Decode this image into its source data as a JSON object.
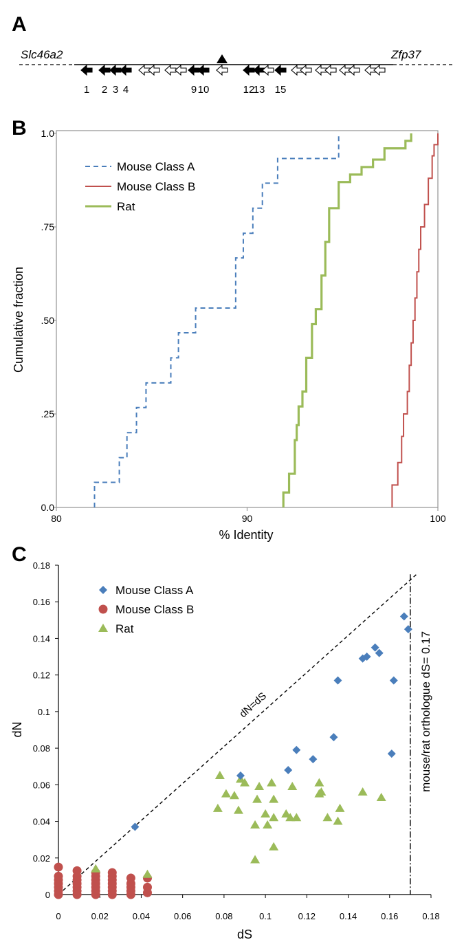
{
  "panel_a": {
    "label": "A",
    "left_gene": "Slc46a2",
    "right_gene": "Zfp37",
    "arrows": [
      {
        "filled": true,
        "label": "1"
      },
      {
        "filled": true,
        "label": "2"
      },
      {
        "filled": true,
        "label": "3"
      },
      {
        "filled": true,
        "label": "4"
      },
      {
        "filled": false,
        "label": ""
      },
      {
        "filled": false,
        "label": ""
      },
      {
        "filled": false,
        "label": ""
      },
      {
        "filled": false,
        "label": ""
      },
      {
        "filled": true,
        "label": "9"
      },
      {
        "filled": true,
        "label": "10"
      },
      {
        "filled": false,
        "label": ""
      },
      {
        "filled": true,
        "label": "12"
      },
      {
        "filled": true,
        "label": "13"
      },
      {
        "filled": false,
        "label": ""
      },
      {
        "filled": true,
        "label": "15"
      },
      {
        "filled": false,
        "label": ""
      },
      {
        "filled": false,
        "label": ""
      },
      {
        "filled": false,
        "label": ""
      },
      {
        "filled": false,
        "label": ""
      },
      {
        "filled": false,
        "label": ""
      },
      {
        "filled": false,
        "label": ""
      },
      {
        "filled": false,
        "label": ""
      },
      {
        "filled": false,
        "label": ""
      }
    ]
  },
  "panel_b": {
    "label": "B"
  },
  "panel_c": {
    "label": "C"
  },
  "colors": {
    "mouse_a": "#4a7ebb",
    "mouse_b": "#c0504d",
    "rat": "#9bbb59"
  },
  "chart_data": [
    {
      "type": "line",
      "subtype": "step-cumulative",
      "xlabel": "% Identity",
      "ylabel": "Cumulative fraction",
      "xlim": [
        80,
        100
      ],
      "ylim": [
        0,
        1
      ],
      "x_ticks": [
        80,
        90,
        100
      ],
      "y_ticks": [
        0,
        0.25,
        0.5,
        0.75,
        1.0
      ],
      "y_tick_labels": [
        "0.0",
        ".25",
        ".50",
        ".75",
        "1.0"
      ],
      "legend_position": "top-left",
      "series": [
        {
          "name": "Mouse Class A",
          "style": "dashed",
          "x": [
            82.0,
            83.3,
            83.7,
            84.2,
            84.7,
            86.0,
            86.4,
            87.3,
            89.4,
            89.8,
            90.3,
            90.8,
            91.6,
            92.2,
            94.8,
            94.8
          ],
          "y": [
            0.067,
            0.133,
            0.2,
            0.267,
            0.333,
            0.4,
            0.467,
            0.533,
            0.667,
            0.733,
            0.8,
            0.867,
            0.933,
            0.933,
            1.0,
            1.0
          ]
        },
        {
          "name": "Mouse Class B",
          "style": "solid",
          "x": [
            97.6,
            97.9,
            98.1,
            98.2,
            98.4,
            98.5,
            98.6,
            98.7,
            98.8,
            98.9,
            99.0,
            99.1,
            99.3,
            99.5,
            99.7,
            99.8,
            100.0
          ],
          "y": [
            0.06,
            0.12,
            0.19,
            0.25,
            0.31,
            0.38,
            0.44,
            0.5,
            0.56,
            0.63,
            0.69,
            0.75,
            0.81,
            0.88,
            0.94,
            0.97,
            1.0
          ]
        },
        {
          "name": "Rat",
          "style": "solid",
          "x": [
            91.9,
            92.2,
            92.5,
            92.6,
            92.7,
            92.9,
            93.1,
            93.4,
            93.6,
            93.9,
            94.1,
            94.3,
            94.8,
            95.4,
            96.0,
            96.6,
            97.2,
            98.3,
            98.6
          ],
          "y": [
            0.04,
            0.09,
            0.18,
            0.22,
            0.27,
            0.31,
            0.4,
            0.49,
            0.53,
            0.62,
            0.71,
            0.8,
            0.87,
            0.89,
            0.91,
            0.93,
            0.96,
            0.98,
            1.0
          ]
        }
      ]
    },
    {
      "type": "scatter",
      "xlabel": "dS",
      "ylabel": "dN",
      "xlim": [
        0,
        0.18
      ],
      "ylim": [
        0,
        0.18
      ],
      "x_ticks": [
        0,
        0.02,
        0.04,
        0.06,
        0.08,
        0.1,
        0.12,
        0.14,
        0.16,
        0.18
      ],
      "x_tick_labels": [
        "0",
        "0.02",
        "0.04",
        "0.06",
        "0.08",
        "0.1",
        "0.12",
        "0.14",
        "0.16",
        "0.18"
      ],
      "y_ticks": [
        0,
        0.02,
        0.04,
        0.06,
        0.08,
        0.1,
        0.12,
        0.14,
        0.16,
        0.18
      ],
      "y_tick_labels": [
        "0",
        "0.02",
        "0.04",
        "0.06",
        "0.08",
        "0.1",
        "0.12",
        "0.14",
        "0.16",
        "0.18"
      ],
      "legend_position": "top-left",
      "annotations": [
        {
          "text": "dN=dS",
          "kind": "diagonal-line",
          "from": [
            0,
            0
          ],
          "to": [
            0.173,
            0.175
          ]
        },
        {
          "text": "mouse/rat orthologue dS= 0.17",
          "kind": "vertical-line",
          "x": 0.17
        }
      ],
      "series": [
        {
          "name": "Mouse Class A",
          "marker": "diamond",
          "points": [
            [
              0.037,
              0.037
            ],
            [
              0.088,
              0.065
            ],
            [
              0.111,
              0.068
            ],
            [
              0.115,
              0.079
            ],
            [
              0.123,
              0.074
            ],
            [
              0.133,
              0.086
            ],
            [
              0.135,
              0.117
            ],
            [
              0.147,
              0.129
            ],
            [
              0.149,
              0.13
            ],
            [
              0.153,
              0.135
            ],
            [
              0.155,
              0.132
            ],
            [
              0.161,
              0.077
            ],
            [
              0.162,
              0.117
            ],
            [
              0.167,
              0.152
            ],
            [
              0.169,
              0.145
            ]
          ]
        },
        {
          "name": "Mouse Class B",
          "marker": "circle",
          "points": [
            [
              0,
              0.0
            ],
            [
              0,
              0.002
            ],
            [
              0,
              0.004
            ],
            [
              0,
              0.006
            ],
            [
              0,
              0.008
            ],
            [
              0,
              0.01
            ],
            [
              0,
              0.015
            ],
            [
              0.009,
              0.0
            ],
            [
              0.009,
              0.002
            ],
            [
              0.009,
              0.004
            ],
            [
              0.009,
              0.006
            ],
            [
              0.009,
              0.008
            ],
            [
              0.009,
              0.01
            ],
            [
              0.009,
              0.013
            ],
            [
              0.018,
              0.0
            ],
            [
              0.018,
              0.002
            ],
            [
              0.018,
              0.004
            ],
            [
              0.018,
              0.006
            ],
            [
              0.018,
              0.008
            ],
            [
              0.018,
              0.01
            ],
            [
              0.018,
              0.012
            ],
            [
              0.026,
              0.0
            ],
            [
              0.026,
              0.002
            ],
            [
              0.026,
              0.004
            ],
            [
              0.026,
              0.006
            ],
            [
              0.026,
              0.008
            ],
            [
              0.026,
              0.01
            ],
            [
              0.026,
              0.012
            ],
            [
              0.035,
              0.0
            ],
            [
              0.035,
              0.002
            ],
            [
              0.035,
              0.004
            ],
            [
              0.035,
              0.006
            ],
            [
              0.035,
              0.009
            ],
            [
              0.043,
              0.001
            ],
            [
              0.043,
              0.004
            ],
            [
              0.043,
              0.009
            ]
          ]
        },
        {
          "name": "Rat",
          "marker": "triangle",
          "points": [
            [
              0.018,
              0.014
            ],
            [
              0.043,
              0.011
            ],
            [
              0.077,
              0.047
            ],
            [
              0.078,
              0.065
            ],
            [
              0.081,
              0.055
            ],
            [
              0.085,
              0.054
            ],
            [
              0.087,
              0.046
            ],
            [
              0.088,
              0.063
            ],
            [
              0.09,
              0.061
            ],
            [
              0.095,
              0.038
            ],
            [
              0.095,
              0.019
            ],
            [
              0.096,
              0.052
            ],
            [
              0.097,
              0.059
            ],
            [
              0.1,
              0.044
            ],
            [
              0.101,
              0.038
            ],
            [
              0.103,
              0.061
            ],
            [
              0.104,
              0.052
            ],
            [
              0.104,
              0.042
            ],
            [
              0.104,
              0.026
            ],
            [
              0.11,
              0.044
            ],
            [
              0.112,
              0.042
            ],
            [
              0.113,
              0.059
            ],
            [
              0.115,
              0.042
            ],
            [
              0.126,
              0.061
            ],
            [
              0.126,
              0.055
            ],
            [
              0.127,
              0.056
            ],
            [
              0.13,
              0.042
            ],
            [
              0.135,
              0.04
            ],
            [
              0.136,
              0.047
            ],
            [
              0.147,
              0.056
            ],
            [
              0.156,
              0.053
            ]
          ]
        }
      ]
    }
  ]
}
